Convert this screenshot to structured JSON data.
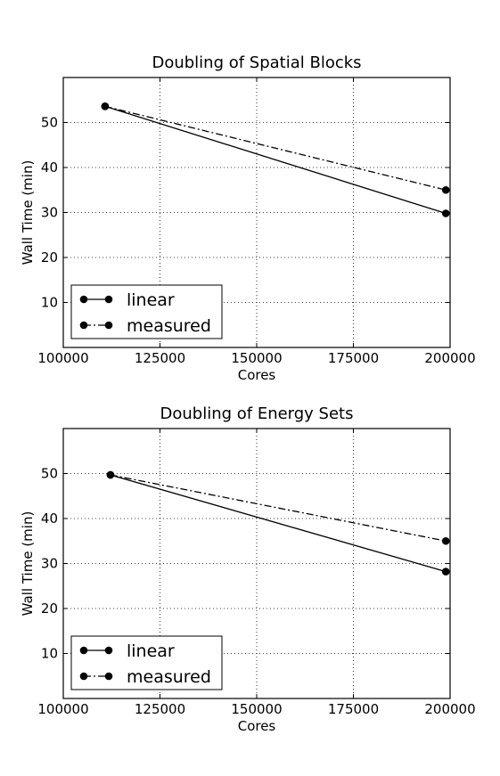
{
  "chart_data": [
    {
      "type": "line",
      "title": "Doubling of Spatial Blocks",
      "xlabel": "Cores",
      "ylabel": "Wall Time (min)",
      "xlim": [
        100000,
        200000
      ],
      "ylim": [
        0,
        60
      ],
      "xticks": [
        100000,
        125000,
        150000,
        175000,
        200000
      ],
      "yticks": [
        10,
        20,
        30,
        40,
        50
      ],
      "grid": true,
      "legend_position": "lower-left",
      "series": [
        {
          "name": "linear",
          "style": "solid",
          "x": [
            110800,
            198900
          ],
          "y": [
            53.6,
            29.8
          ]
        },
        {
          "name": "measured",
          "style": "dashdot",
          "x": [
            110800,
            198900
          ],
          "y": [
            53.6,
            35.0
          ]
        }
      ]
    },
    {
      "type": "line",
      "title": "Doubling of Energy Sets",
      "xlabel": "Cores",
      "ylabel": "Wall Time (min)",
      "xlim": [
        100000,
        200000
      ],
      "ylim": [
        0,
        60
      ],
      "xticks": [
        100000,
        125000,
        150000,
        175000,
        200000
      ],
      "yticks": [
        10,
        20,
        30,
        40,
        50
      ],
      "grid": true,
      "legend_position": "lower-left",
      "series": [
        {
          "name": "linear",
          "style": "solid",
          "x": [
            112200,
            198900
          ],
          "y": [
            49.7,
            28.2
          ]
        },
        {
          "name": "measured",
          "style": "dashdot",
          "x": [
            112200,
            198900
          ],
          "y": [
            49.7,
            35.0
          ]
        }
      ]
    }
  ]
}
